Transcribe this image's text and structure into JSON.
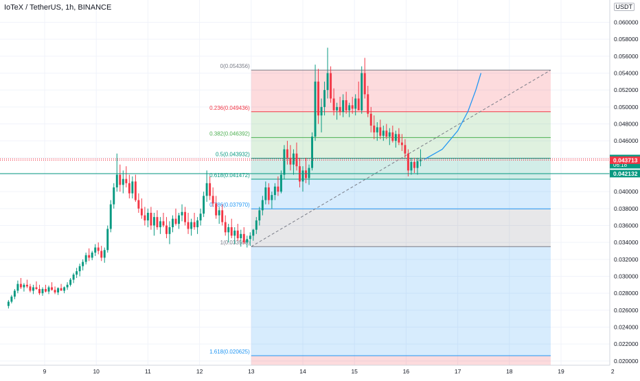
{
  "header": {
    "title": "IoTeX / TetherUS, 1h, BINANCE",
    "currency": "USDT"
  },
  "chart_data": {
    "type": "candlestick",
    "symbol": "IoTeX / TetherUS",
    "interval": "1h",
    "exchange": "BINANCE",
    "ylim": [
      0.0195,
      0.0615
    ],
    "y_ticks": [
      "0.060000",
      "0.058000",
      "0.056000",
      "0.054000",
      "0.052000",
      "0.050000",
      "0.048000",
      "0.046000",
      "0.044000",
      "0.042000",
      "0.040000",
      "0.038000",
      "0.036000",
      "0.034000",
      "0.032000",
      "0.030000",
      "0.028000",
      "0.026000",
      "0.024000",
      "0.022000",
      "0.020000"
    ],
    "x_ticks": [
      "9",
      "10",
      "11",
      "12",
      "13",
      "14",
      "15",
      "16",
      "17",
      "18",
      "19",
      "2"
    ],
    "fib_levels": [
      {
        "label": "0(0.054356)",
        "value": 0.054356,
        "color": "#787b86"
      },
      {
        "label": "0.236(0.049436)",
        "value": 0.049436,
        "color": "#f23645"
      },
      {
        "label": "0.382(0.046392)",
        "value": 0.046392,
        "color": "#4caf50"
      },
      {
        "label": "0.5(0.043932)",
        "value": 0.043932,
        "color": "#089981"
      },
      {
        "label": "0.618(0.041472)",
        "value": 0.041472,
        "color": "#089981"
      },
      {
        "label": "0.786(0.037970)",
        "value": 0.03797,
        "color": "#2196f3"
      },
      {
        "label": "1(0.033508)",
        "value": 0.033508,
        "color": "#787b86"
      },
      {
        "label": "1.618(0.020625)",
        "value": 0.020625,
        "color": "#2196f3"
      }
    ],
    "fib_zones": [
      {
        "from": 0.054356,
        "to": 0.049436,
        "color": "#f23645"
      },
      {
        "from": 0.049436,
        "to": 0.046392,
        "color": "#4caf50"
      },
      {
        "from": 0.046392,
        "to": 0.043932,
        "color": "#4caf50"
      },
      {
        "from": 0.043932,
        "to": 0.041472,
        "color": "#089981"
      },
      {
        "from": 0.041472,
        "to": 0.03797,
        "color": "#2196f3"
      },
      {
        "from": 0.03797,
        "to": 0.033508,
        "color": "#787b86"
      },
      {
        "from": 0.033508,
        "to": 0.020625,
        "color": "#2196f3"
      },
      {
        "from": 0.020625,
        "to": 0.0195,
        "color": "#f23645"
      }
    ],
    "fib_start_x": 13.0,
    "fib_end_x": 18.8,
    "trend_line": {
      "x1": 13.0,
      "y1": 0.033508,
      "x2": 18.8,
      "y2": 0.054356
    },
    "projection_curve": [
      [
        16.35,
        0.0438
      ],
      [
        16.7,
        0.045
      ],
      [
        17.0,
        0.0472
      ],
      [
        17.2,
        0.0495
      ],
      [
        17.35,
        0.052
      ],
      [
        17.45,
        0.054
      ]
    ],
    "horizontal_lines": [
      {
        "value": 0.04387,
        "color": "#f23645",
        "style": "dotted"
      },
      {
        "value": 0.043713,
        "color": "#f23645",
        "style": "dotted"
      },
      {
        "value": 0.042132,
        "color": "#089981",
        "style": "solid"
      }
    ],
    "price_labels": [
      {
        "text": "0.043870",
        "sub": "06:18",
        "value": 0.04387,
        "color": "#089981"
      },
      {
        "text": "0.043713",
        "value": 0.043713,
        "color": "#f23645"
      },
      {
        "text": "0.042132",
        "value": 0.042132,
        "color": "#089981"
      }
    ],
    "candles": [
      [
        8.3,
        0.0265,
        0.0272,
        0.0262,
        0.027
      ],
      [
        8.36,
        0.027,
        0.0278,
        0.0268,
        0.0276
      ],
      [
        8.42,
        0.0276,
        0.0285,
        0.0273,
        0.0283
      ],
      [
        8.48,
        0.0283,
        0.0295,
        0.028,
        0.0291
      ],
      [
        8.54,
        0.0291,
        0.0298,
        0.0285,
        0.0287
      ],
      [
        8.6,
        0.0287,
        0.0292,
        0.0282,
        0.029
      ],
      [
        8.66,
        0.029,
        0.0296,
        0.0286,
        0.0288
      ],
      [
        8.72,
        0.0288,
        0.0291,
        0.0281,
        0.0283
      ],
      [
        8.78,
        0.0283,
        0.029,
        0.0279,
        0.0287
      ],
      [
        8.84,
        0.0287,
        0.0294,
        0.0284,
        0.0285
      ],
      [
        8.9,
        0.0285,
        0.029,
        0.0278,
        0.028
      ],
      [
        8.96,
        0.028,
        0.0287,
        0.0277,
        0.0285
      ],
      [
        9.02,
        0.0285,
        0.029,
        0.0281,
        0.0282
      ],
      [
        9.08,
        0.0282,
        0.0289,
        0.0279,
        0.0287
      ],
      [
        9.14,
        0.0287,
        0.0293,
        0.0283,
        0.0284
      ],
      [
        9.2,
        0.0284,
        0.0288,
        0.0279,
        0.0281
      ],
      [
        9.26,
        0.0281,
        0.0287,
        0.0278,
        0.0286
      ],
      [
        9.32,
        0.0286,
        0.0291,
        0.0283,
        0.0283
      ],
      [
        9.38,
        0.0283,
        0.0288,
        0.028,
        0.0287
      ],
      [
        9.44,
        0.0287,
        0.0293,
        0.0284,
        0.029
      ],
      [
        9.5,
        0.029,
        0.0298,
        0.0288,
        0.0296
      ],
      [
        9.56,
        0.0296,
        0.0304,
        0.0292,
        0.0302
      ],
      [
        9.62,
        0.0302,
        0.031,
        0.0298,
        0.0306
      ],
      [
        9.68,
        0.0306,
        0.0315,
        0.03,
        0.0312
      ],
      [
        9.74,
        0.0312,
        0.032,
        0.0307,
        0.0317
      ],
      [
        9.8,
        0.0317,
        0.0328,
        0.0314,
        0.0325
      ],
      [
        9.86,
        0.0325,
        0.0333,
        0.0318,
        0.0322
      ],
      [
        9.92,
        0.0322,
        0.033,
        0.0319,
        0.0328
      ],
      [
        9.98,
        0.0328,
        0.0338,
        0.0324,
        0.0334
      ],
      [
        10.04,
        0.0334,
        0.034,
        0.0326,
        0.033
      ],
      [
        10.1,
        0.033,
        0.0336,
        0.0318,
        0.0322
      ],
      [
        10.16,
        0.0322,
        0.0334,
        0.0316,
        0.0331
      ],
      [
        10.22,
        0.0331,
        0.036,
        0.0328,
        0.0356
      ],
      [
        10.28,
        0.0356,
        0.039,
        0.0352,
        0.0385
      ],
      [
        10.34,
        0.0385,
        0.041,
        0.038,
        0.0405
      ],
      [
        10.4,
        0.0405,
        0.0445,
        0.04,
        0.042
      ],
      [
        10.46,
        0.042,
        0.0432,
        0.04,
        0.0408
      ],
      [
        10.52,
        0.0408,
        0.0425,
        0.0398,
        0.0415
      ],
      [
        10.58,
        0.0415,
        0.043,
        0.0405,
        0.041
      ],
      [
        10.64,
        0.041,
        0.042,
        0.0392,
        0.0398
      ],
      [
        10.7,
        0.0398,
        0.0418,
        0.0392,
        0.0412
      ],
      [
        10.76,
        0.0412,
        0.042,
        0.0388,
        0.039
      ],
      [
        10.82,
        0.039,
        0.0398,
        0.0375,
        0.038
      ],
      [
        10.88,
        0.038,
        0.0392,
        0.0368,
        0.0372
      ],
      [
        10.94,
        0.0372,
        0.0382,
        0.036,
        0.0366
      ],
      [
        11.0,
        0.0366,
        0.038,
        0.0358,
        0.0375
      ],
      [
        11.06,
        0.0375,
        0.0382,
        0.0355,
        0.036
      ],
      [
        11.12,
        0.036,
        0.0375,
        0.0348,
        0.037
      ],
      [
        11.18,
        0.037,
        0.0378,
        0.0355,
        0.0358
      ],
      [
        11.24,
        0.0358,
        0.037,
        0.035,
        0.0365
      ],
      [
        11.3,
        0.0365,
        0.0375,
        0.0358,
        0.036
      ],
      [
        11.36,
        0.036,
        0.037,
        0.0345,
        0.035
      ],
      [
        11.42,
        0.035,
        0.0365,
        0.0338,
        0.0358
      ],
      [
        11.48,
        0.0358,
        0.0372,
        0.0352,
        0.0368
      ],
      [
        11.54,
        0.0368,
        0.038,
        0.036,
        0.0362
      ],
      [
        11.6,
        0.0362,
        0.0375,
        0.0356,
        0.0372
      ],
      [
        11.66,
        0.0372,
        0.0385,
        0.0365,
        0.0376
      ],
      [
        11.72,
        0.0376,
        0.0382,
        0.036,
        0.0364
      ],
      [
        11.78,
        0.0364,
        0.0375,
        0.035,
        0.0356
      ],
      [
        11.84,
        0.0356,
        0.0368,
        0.0348,
        0.0364
      ],
      [
        11.9,
        0.0364,
        0.0375,
        0.0355,
        0.0358
      ],
      [
        11.96,
        0.0358,
        0.037,
        0.035,
        0.0366
      ],
      [
        12.02,
        0.0366,
        0.038,
        0.036,
        0.0374
      ],
      [
        12.08,
        0.0374,
        0.04,
        0.037,
        0.0395
      ],
      [
        12.14,
        0.0395,
        0.0425,
        0.0388,
        0.041
      ],
      [
        12.2,
        0.041,
        0.0418,
        0.039,
        0.0395
      ],
      [
        12.26,
        0.0395,
        0.0405,
        0.0382,
        0.0386
      ],
      [
        12.32,
        0.0386,
        0.0395,
        0.0368,
        0.0372
      ],
      [
        12.38,
        0.0372,
        0.0382,
        0.0362,
        0.0378
      ],
      [
        12.44,
        0.0378,
        0.0385,
        0.036,
        0.0364
      ],
      [
        12.5,
        0.0364,
        0.0372,
        0.0348,
        0.0352
      ],
      [
        12.56,
        0.0352,
        0.0362,
        0.034,
        0.0358
      ],
      [
        12.62,
        0.0358,
        0.0368,
        0.0345,
        0.0348
      ],
      [
        12.68,
        0.0348,
        0.0358,
        0.0338,
        0.0354
      ],
      [
        12.74,
        0.0354,
        0.0362,
        0.0342,
        0.0345
      ],
      [
        12.8,
        0.0345,
        0.0355,
        0.0335,
        0.035
      ],
      [
        12.86,
        0.035,
        0.0358,
        0.0338,
        0.034
      ],
      [
        12.92,
        0.034,
        0.0348,
        0.0334,
        0.0344
      ],
      [
        12.98,
        0.0344,
        0.0352,
        0.0336,
        0.0348
      ],
      [
        13.04,
        0.0348,
        0.0356,
        0.0342,
        0.0355
      ],
      [
        13.1,
        0.0355,
        0.037,
        0.035,
        0.0366
      ],
      [
        13.16,
        0.0366,
        0.0382,
        0.036,
        0.0378
      ],
      [
        13.22,
        0.0378,
        0.0395,
        0.0372,
        0.039
      ],
      [
        13.28,
        0.039,
        0.0412,
        0.0385,
        0.0405
      ],
      [
        13.34,
        0.0405,
        0.041,
        0.0385,
        0.039
      ],
      [
        13.4,
        0.039,
        0.04,
        0.038,
        0.0396
      ],
      [
        13.46,
        0.0396,
        0.041,
        0.039,
        0.0406
      ],
      [
        13.52,
        0.0406,
        0.0418,
        0.0395,
        0.04
      ],
      [
        13.58,
        0.04,
        0.0425,
        0.0398,
        0.042
      ],
      [
        13.64,
        0.042,
        0.0455,
        0.0415,
        0.045
      ],
      [
        13.7,
        0.045,
        0.046,
        0.0432,
        0.044
      ],
      [
        13.76,
        0.044,
        0.0455,
        0.0425,
        0.0432
      ],
      [
        13.82,
        0.0432,
        0.045,
        0.042,
        0.0445
      ],
      [
        13.88,
        0.0445,
        0.0458,
        0.0425,
        0.043
      ],
      [
        13.94,
        0.043,
        0.044,
        0.0405,
        0.0412
      ],
      [
        14.0,
        0.0412,
        0.043,
        0.04,
        0.0425
      ],
      [
        14.06,
        0.0425,
        0.044,
        0.041,
        0.0416
      ],
      [
        14.12,
        0.0416,
        0.0432,
        0.0408,
        0.0428
      ],
      [
        14.18,
        0.0428,
        0.047,
        0.0425,
        0.0465
      ],
      [
        14.24,
        0.0465,
        0.055,
        0.046,
        0.053
      ],
      [
        14.3,
        0.053,
        0.0545,
        0.048,
        0.049
      ],
      [
        14.36,
        0.049,
        0.051,
        0.047,
        0.05
      ],
      [
        14.42,
        0.05,
        0.053,
        0.049,
        0.052
      ],
      [
        14.48,
        0.052,
        0.057,
        0.051,
        0.054
      ],
      [
        14.54,
        0.054,
        0.0548,
        0.0505,
        0.051
      ],
      [
        14.6,
        0.051,
        0.0522,
        0.049,
        0.0496
      ],
      [
        14.66,
        0.0496,
        0.0505,
        0.0485,
        0.05
      ],
      [
        14.72,
        0.05,
        0.0512,
        0.049,
        0.0494
      ],
      [
        14.78,
        0.0494,
        0.0515,
        0.0488,
        0.0508
      ],
      [
        14.84,
        0.0508,
        0.0518,
        0.0492,
        0.0496
      ],
      [
        14.9,
        0.0496,
        0.0505,
        0.0488,
        0.0502
      ],
      [
        14.96,
        0.0502,
        0.0512,
        0.0492,
        0.0498
      ],
      [
        15.02,
        0.0498,
        0.0515,
        0.049,
        0.051
      ],
      [
        15.08,
        0.051,
        0.053,
        0.05,
        0.0496
      ],
      [
        15.14,
        0.0496,
        0.0548,
        0.0492,
        0.054
      ],
      [
        15.2,
        0.054,
        0.0558,
        0.051,
        0.0515
      ],
      [
        15.26,
        0.0515,
        0.0525,
        0.0488,
        0.0492
      ],
      [
        15.32,
        0.0492,
        0.05,
        0.047,
        0.0478
      ],
      [
        15.38,
        0.0478,
        0.049,
        0.0462,
        0.047
      ],
      [
        15.44,
        0.047,
        0.0482,
        0.046,
        0.0476
      ],
      [
        15.5,
        0.0476,
        0.0485,
        0.0462,
        0.0466
      ],
      [
        15.56,
        0.0466,
        0.0478,
        0.046,
        0.0472
      ],
      [
        15.62,
        0.0472,
        0.048,
        0.0462,
        0.0465
      ],
      [
        15.68,
        0.0465,
        0.0475,
        0.0455,
        0.047
      ],
      [
        15.74,
        0.047,
        0.0478,
        0.0458,
        0.046
      ],
      [
        15.8,
        0.046,
        0.0472,
        0.0452,
        0.0468
      ],
      [
        15.86,
        0.0468,
        0.0475,
        0.0455,
        0.0458
      ],
      [
        15.92,
        0.0458,
        0.0468,
        0.0448,
        0.0455
      ],
      [
        15.98,
        0.0455,
        0.0462,
        0.044,
        0.0445
      ],
      [
        16.04,
        0.0445,
        0.045,
        0.0418,
        0.0425
      ],
      [
        16.1,
        0.0425,
        0.044,
        0.042,
        0.0435
      ],
      [
        16.16,
        0.0435,
        0.044,
        0.0422,
        0.0428
      ],
      [
        16.22,
        0.0428,
        0.044,
        0.042,
        0.0436
      ],
      [
        16.28,
        0.0436,
        0.045,
        0.043,
        0.0438
      ]
    ]
  }
}
